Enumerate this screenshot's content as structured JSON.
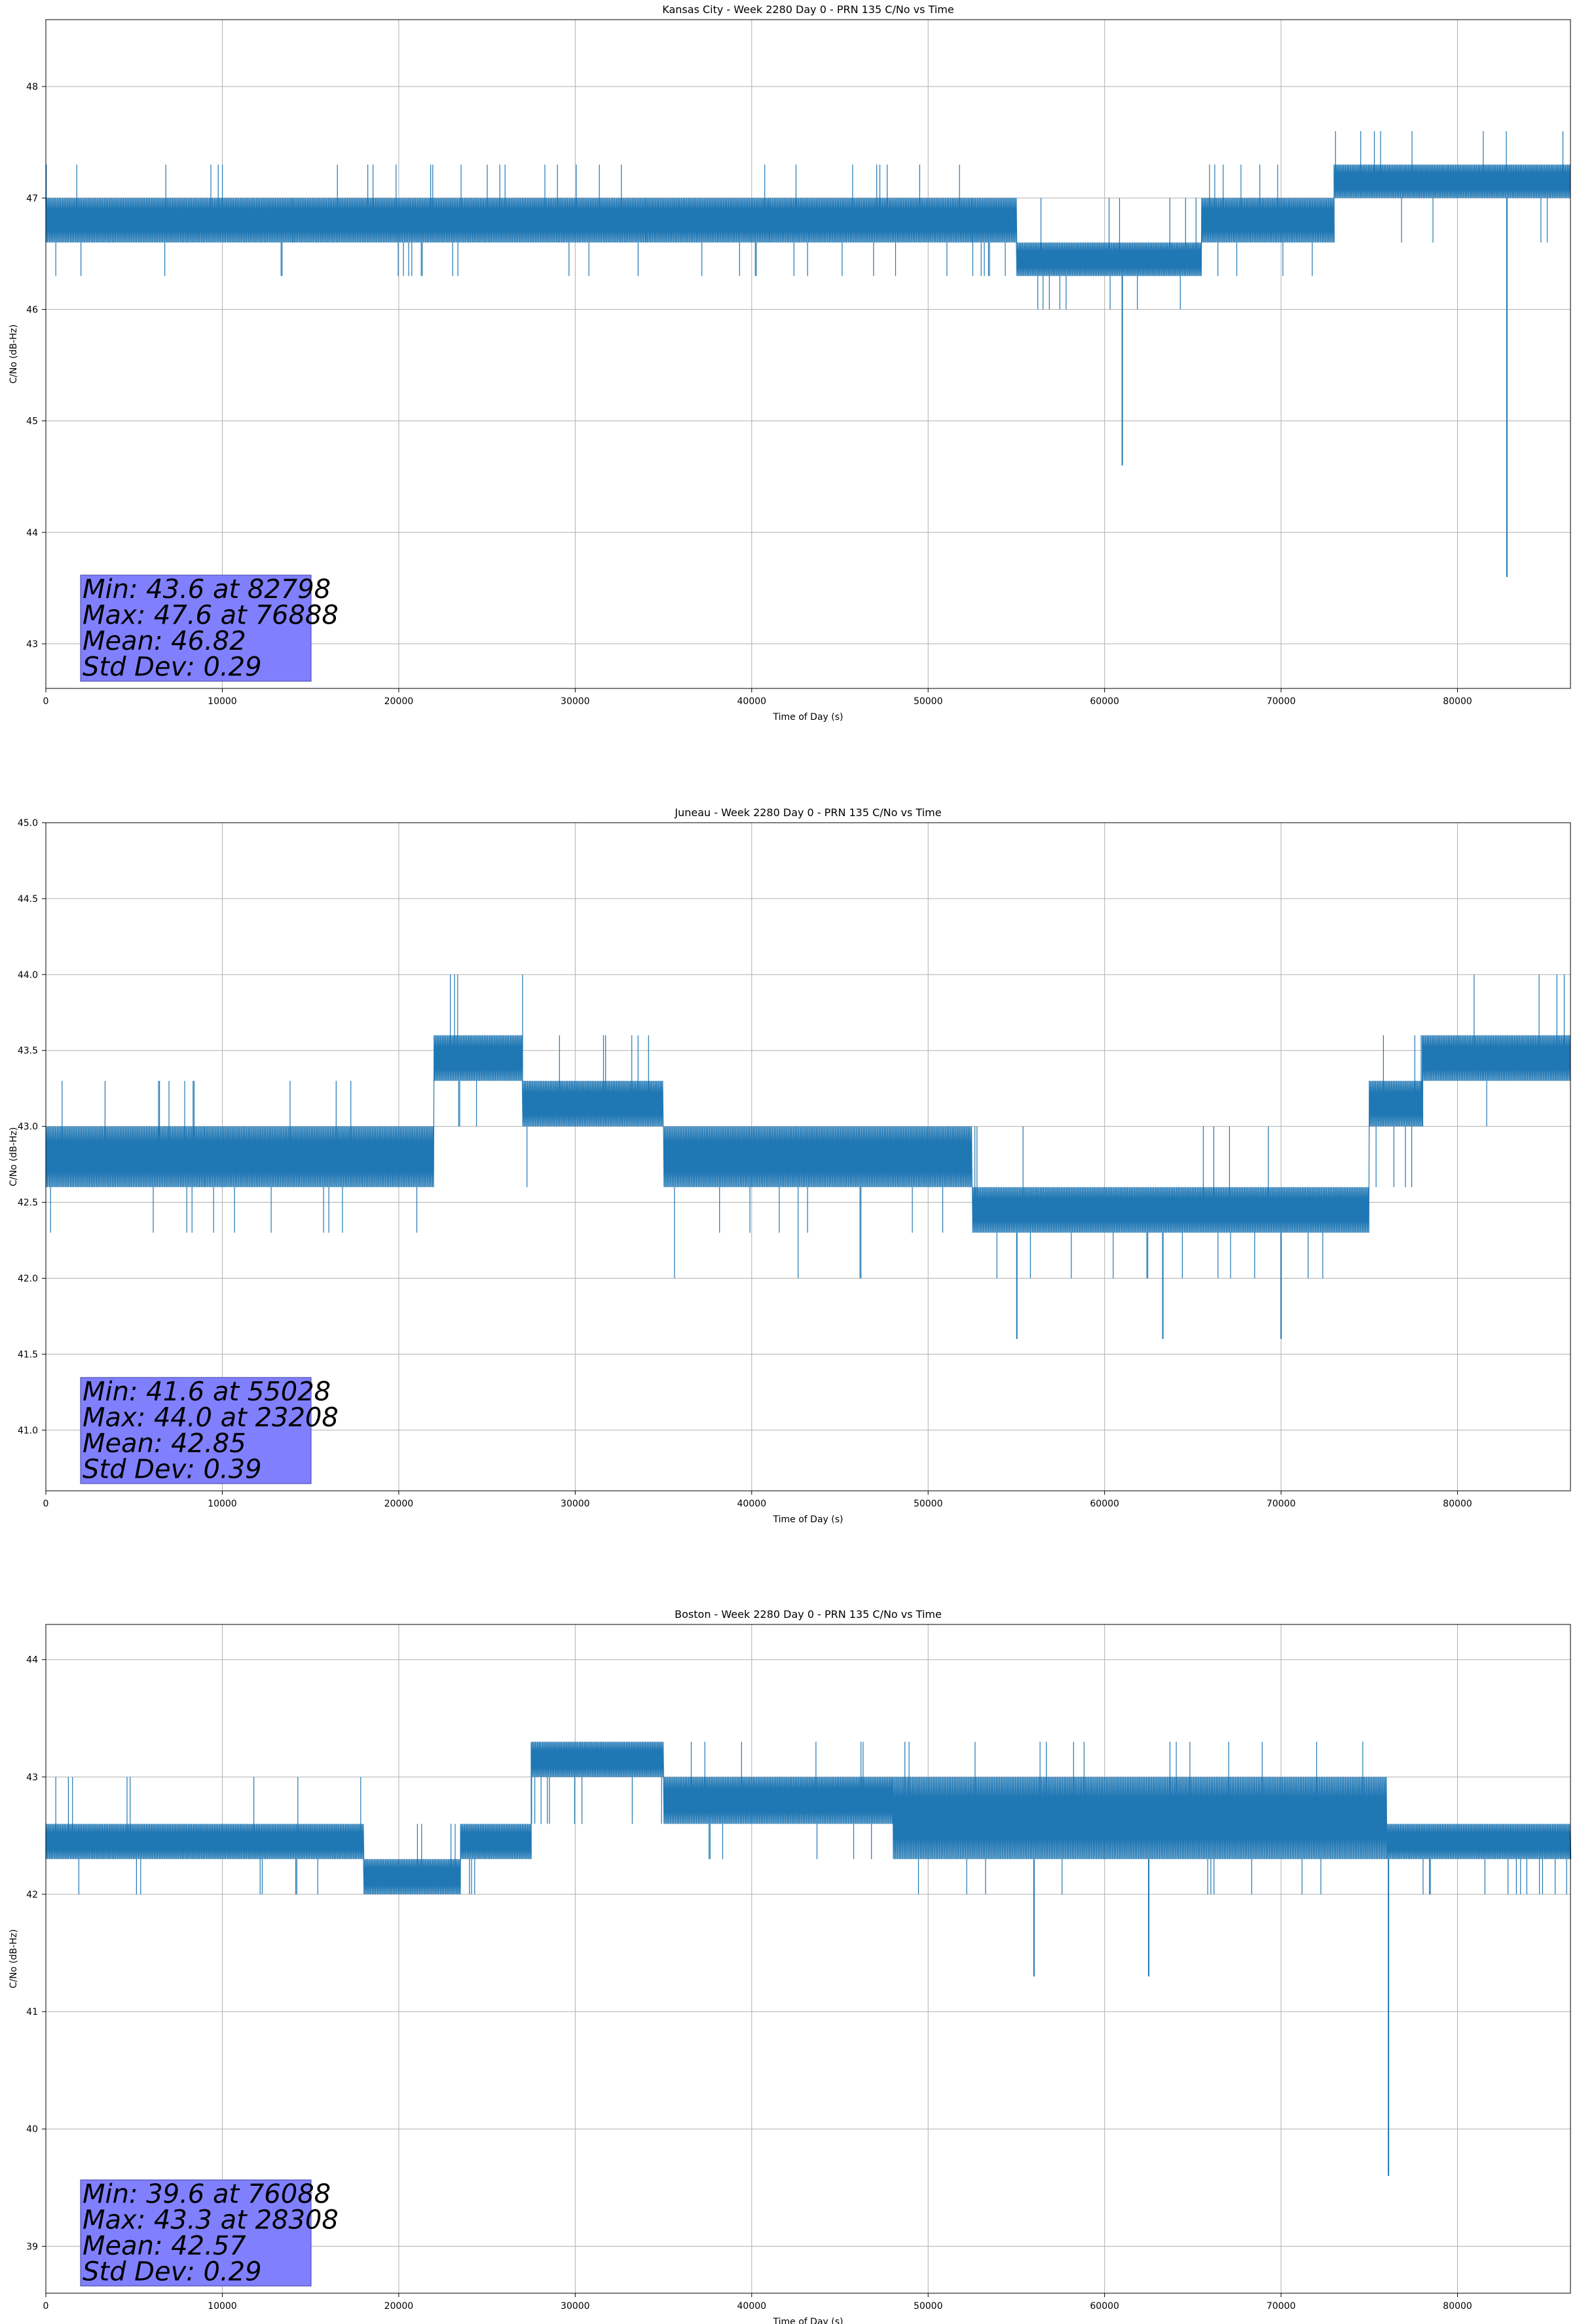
{
  "chart_data": [
    {
      "type": "line",
      "title": "Kansas City - Week 2280 Day 0 - PRN 135 C/No vs Time",
      "xlabel": "Time of Day (s)",
      "ylabel": "C/No (dB-Hz)",
      "xlim": [
        0,
        86400
      ],
      "ylim": [
        42.6,
        48.6
      ],
      "xticks": [
        0,
        10000,
        20000,
        30000,
        40000,
        50000,
        60000,
        70000,
        80000
      ],
      "yticks": [
        43,
        44,
        45,
        46,
        47,
        48
      ],
      "ytick_labels": [
        "43",
        "44",
        "45",
        "46",
        "47",
        "48"
      ],
      "grid": true,
      "color": "#1f77b4",
      "series": [
        {
          "segments": [
            {
              "x0": 0,
              "x1": 14000,
              "base": [
                46.6,
                47.0
              ],
              "alts": [
                47.3,
                46.3
              ]
            },
            {
              "x0": 14000,
              "x1": 34000,
              "base": [
                46.6,
                47.0
              ],
              "alts": [
                47.3,
                47.3,
                46.3
              ]
            },
            {
              "x0": 34000,
              "x1": 41000,
              "base": [
                46.6,
                47.0
              ],
              "alts": [
                46.3,
                46.3,
                47.3
              ]
            },
            {
              "x0": 41000,
              "x1": 52500,
              "base": [
                46.6,
                47.0
              ],
              "alts": [
                47.3,
                46.3
              ]
            },
            {
              "x0": 52500,
              "x1": 55000,
              "base": [
                46.6,
                47.0
              ],
              "alts": [
                46.3
              ]
            },
            {
              "x0": 55000,
              "x1": 65500,
              "base": [
                46.3,
                46.6
              ],
              "alts": [
                46.0,
                46.0,
                47.0
              ]
            },
            {
              "x0": 65500,
              "x1": 73000,
              "base": [
                46.6,
                47.0
              ],
              "alts": [
                46.3,
                47.3
              ]
            },
            {
              "x0": 73000,
              "x1": 86400,
              "base": [
                47.0,
                47.3
              ],
              "alts": [
                47.6,
                46.6,
                47.6
              ]
            }
          ],
          "spikes": [
            [
              61000,
              44.6
            ],
            [
              82798,
              43.6
            ]
          ]
        }
      ],
      "annotation": {
        "lines": [
          "Min: 43.6 at 82798",
          "Max: 47.6 at 76888",
          "Mean: 46.82",
          "Std Dev: 0.29"
        ]
      }
    },
    {
      "type": "line",
      "title": "Juneau - Week 2280 Day 0 - PRN 135 C/No vs Time",
      "xlabel": "Time of Day (s)",
      "ylabel": "C/No (dB-Hz)",
      "xlim": [
        0,
        86400
      ],
      "ylim": [
        40.6,
        45.0
      ],
      "xticks": [
        0,
        10000,
        20000,
        30000,
        40000,
        50000,
        60000,
        70000,
        80000
      ],
      "yticks": [
        41.0,
        41.5,
        42.0,
        42.5,
        43.0,
        43.5,
        44.0,
        44.5,
        45.0
      ],
      "ytick_labels": [
        "41.0",
        "41.5",
        "42.0",
        "42.5",
        "43.0",
        "43.5",
        "44.0",
        "44.5",
        "45.0"
      ],
      "grid": true,
      "color": "#1f77b4",
      "series": [
        {
          "segments": [
            {
              "x0": 0,
              "x1": 9000,
              "base": [
                42.6,
                43.0
              ],
              "alts": [
                43.3,
                42.3,
                43.3
              ]
            },
            {
              "x0": 9000,
              "x1": 22000,
              "base": [
                42.6,
                43.0
              ],
              "alts": [
                42.3,
                43.3
              ]
            },
            {
              "x0": 22000,
              "x1": 27000,
              "base": [
                43.3,
                43.6
              ],
              "alts": [
                43.0,
                44.0
              ]
            },
            {
              "x0": 27000,
              "x1": 35000,
              "base": [
                43.0,
                43.3
              ],
              "alts": [
                43.6,
                42.6
              ]
            },
            {
              "x0": 35000,
              "x1": 52500,
              "base": [
                42.6,
                43.0
              ],
              "alts": [
                42.3,
                42.3,
                42.0
              ]
            },
            {
              "x0": 52500,
              "x1": 75000,
              "base": [
                42.3,
                42.6
              ],
              "alts": [
                42.0,
                42.0,
                43.0
              ]
            },
            {
              "x0": 75000,
              "x1": 78000,
              "base": [
                43.0,
                43.3
              ],
              "alts": [
                42.6,
                43.6
              ]
            },
            {
              "x0": 78000,
              "x1": 86400,
              "base": [
                43.3,
                43.6
              ],
              "alts": [
                44.0,
                43.0,
                44.0
              ]
            }
          ],
          "spikes": [
            [
              55028,
              41.6
            ],
            [
              63300,
              41.6
            ],
            [
              70000,
              41.6
            ]
          ]
        }
      ],
      "annotation": {
        "lines": [
          "Min: 41.6 at 55028",
          "Max: 44.0 at 23208",
          "Mean: 42.85",
          "Std Dev: 0.39"
        ]
      }
    },
    {
      "type": "line",
      "title": "Boston - Week 2280 Day 0 - PRN 135 C/No vs Time",
      "xlabel": "Time of Day (s)",
      "ylabel": "C/No (dB-Hz)",
      "xlim": [
        0,
        86400
      ],
      "ylim": [
        38.6,
        44.3
      ],
      "xticks": [
        0,
        10000,
        20000,
        30000,
        40000,
        50000,
        60000,
        70000,
        80000
      ],
      "yticks": [
        39,
        40,
        41,
        42,
        43,
        44
      ],
      "ytick_labels": [
        "39",
        "40",
        "41",
        "42",
        "43",
        "44"
      ],
      "grid": true,
      "color": "#1f77b4",
      "series": [
        {
          "segments": [
            {
              "x0": 0,
              "x1": 18000,
              "base": [
                42.3,
                42.6
              ],
              "alts": [
                42.0,
                43.0,
                42.0
              ]
            },
            {
              "x0": 18000,
              "x1": 23500,
              "base": [
                42.0,
                42.3
              ],
              "alts": [
                42.6
              ]
            },
            {
              "x0": 23500,
              "x1": 27500,
              "base": [
                42.3,
                42.6
              ],
              "alts": [
                42.0
              ]
            },
            {
              "x0": 27500,
              "x1": 35000,
              "base": [
                43.0,
                43.3
              ],
              "alts": [
                42.6,
                42.6
              ]
            },
            {
              "x0": 35000,
              "x1": 48000,
              "base": [
                42.6,
                43.0
              ],
              "alts": [
                42.3,
                43.3
              ]
            },
            {
              "x0": 48000,
              "x1": 76000,
              "base": [
                42.3,
                43.0
              ],
              "alts": [
                42.0,
                43.3
              ]
            },
            {
              "x0": 76000,
              "x1": 86400,
              "base": [
                42.3,
                42.6
              ],
              "alts": [
                42.0,
                42.0
              ]
            }
          ],
          "spikes": [
            [
              56000,
              41.3
            ],
            [
              62500,
              41.3
            ],
            [
              76088,
              39.6
            ]
          ]
        }
      ],
      "annotation": {
        "lines": [
          "Min: 39.6 at 76088",
          "Max: 43.3 at 28308",
          "Mean: 42.57",
          "Std Dev: 0.29"
        ]
      }
    }
  ]
}
